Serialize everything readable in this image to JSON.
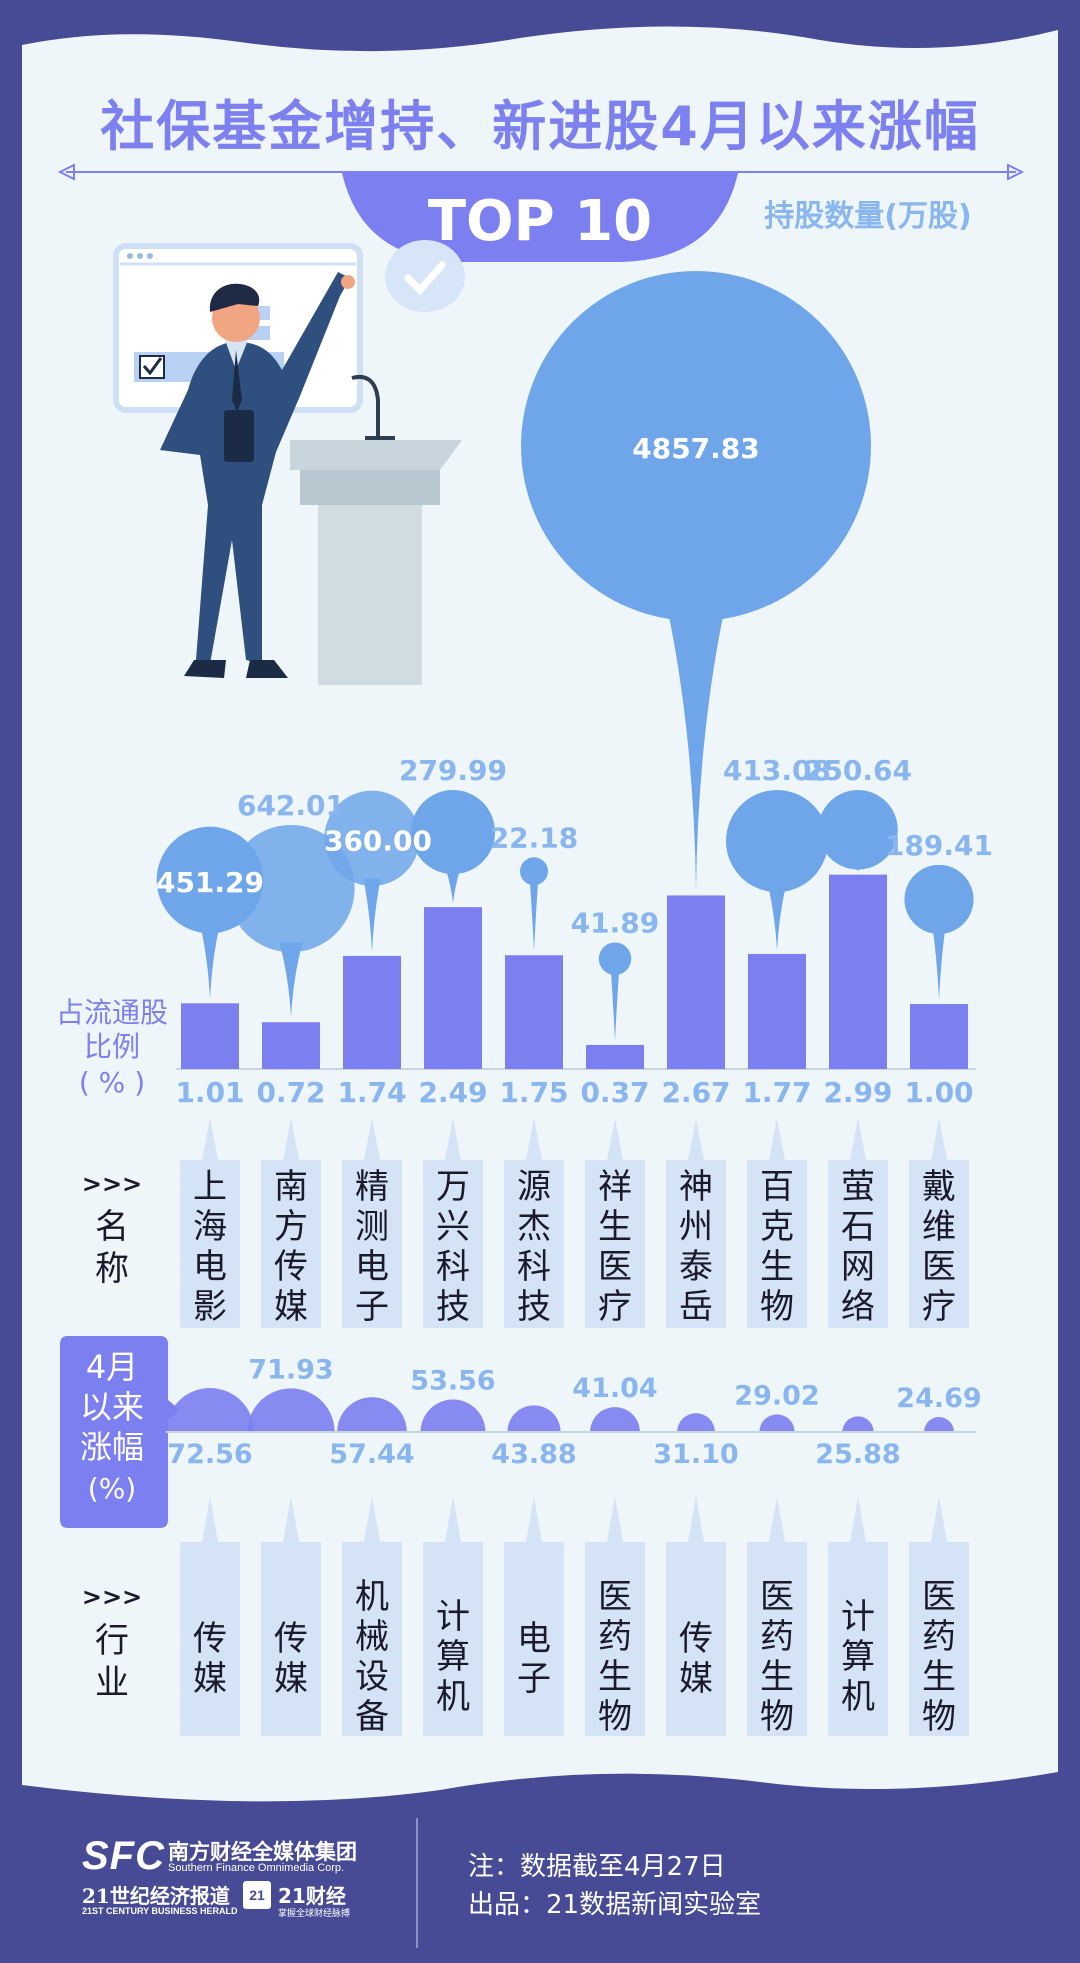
{
  "title": "社保基金增持、新进股4月以来涨幅",
  "subtitle": "TOP 10",
  "bubble_legend": "持股数量(万股)",
  "row_labels": {
    "ratio": [
      "占流通股",
      "比例",
      "( % )"
    ],
    "name": [
      ">>>",
      "名",
      "称"
    ],
    "rise": [
      "4月",
      "以来",
      "涨幅",
      "(%)"
    ],
    "industry": [
      ">>>",
      "行",
      "业"
    ]
  },
  "colors": {
    "bubble": "#6fa6ea",
    "bar": "#7b7ff0",
    "title": "#7d80ef",
    "panel": "#eef6f9",
    "border": "#474a94",
    "value": "#8ab6ef",
    "name_box": "#d4e4f6"
  },
  "chart_data": {
    "type": "bar",
    "categories": [
      "上海电影",
      "南方传媒",
      "精测电子",
      "万兴科技",
      "源杰科技",
      "祥生医疗",
      "神州泰岳",
      "百克生物",
      "萤石网络",
      "戴维医疗"
    ],
    "industries": [
      "传媒",
      "传媒",
      "机械设备",
      "计算机",
      "电子",
      "医药生物",
      "传媒",
      "医药生物",
      "计算机",
      "医药生物"
    ],
    "series": [
      {
        "name": "持股数量(万股)",
        "values": [
          451.29,
          642.01,
          360.0,
          279.99,
          22.18,
          41.89,
          4857.83,
          413.08,
          250.64,
          189.41
        ]
      },
      {
        "name": "占流通股比例(%)",
        "values": [
          1.01,
          0.72,
          1.74,
          2.49,
          1.75,
          0.37,
          2.67,
          1.77,
          2.99,
          1.0
        ]
      },
      {
        "name": "4月以来涨幅(%)",
        "values": [
          72.56,
          71.93,
          57.44,
          53.56,
          43.88,
          41.04,
          31.1,
          29.02,
          25.88,
          24.69
        ]
      }
    ],
    "labels": {
      "holdings": [
        "451.29",
        "642.01",
        "360.00",
        "279.99",
        "22.18",
        "41.89",
        "4857.83",
        "413.08",
        "250.64",
        "189.41"
      ],
      "ratio": [
        "1.01",
        "0.72",
        "1.74",
        "2.49",
        "1.75",
        "0.37",
        "2.67",
        "1.77",
        "2.99",
        "1.00"
      ],
      "rise": [
        "72.56",
        "71.93",
        "57.44",
        "53.56",
        "43.88",
        "41.04",
        "31.10",
        "29.02",
        "25.88",
        "24.69"
      ]
    }
  },
  "footer": {
    "sfc_logo": "SFC",
    "sfc_cn": "南方财经全媒体集团",
    "sfc_en": "Southern Finance Omnimedia Corp.",
    "herald_cn": "21世纪经济报道",
    "herald_en": "21ST CENTURY BUSINESS HERALD",
    "app_badge": "21",
    "app_cn": "21财经",
    "app_sub": "掌握全球财经脉搏",
    "note": "注：数据截至4月27日",
    "producer": "出品：21数据新闻实验室"
  }
}
